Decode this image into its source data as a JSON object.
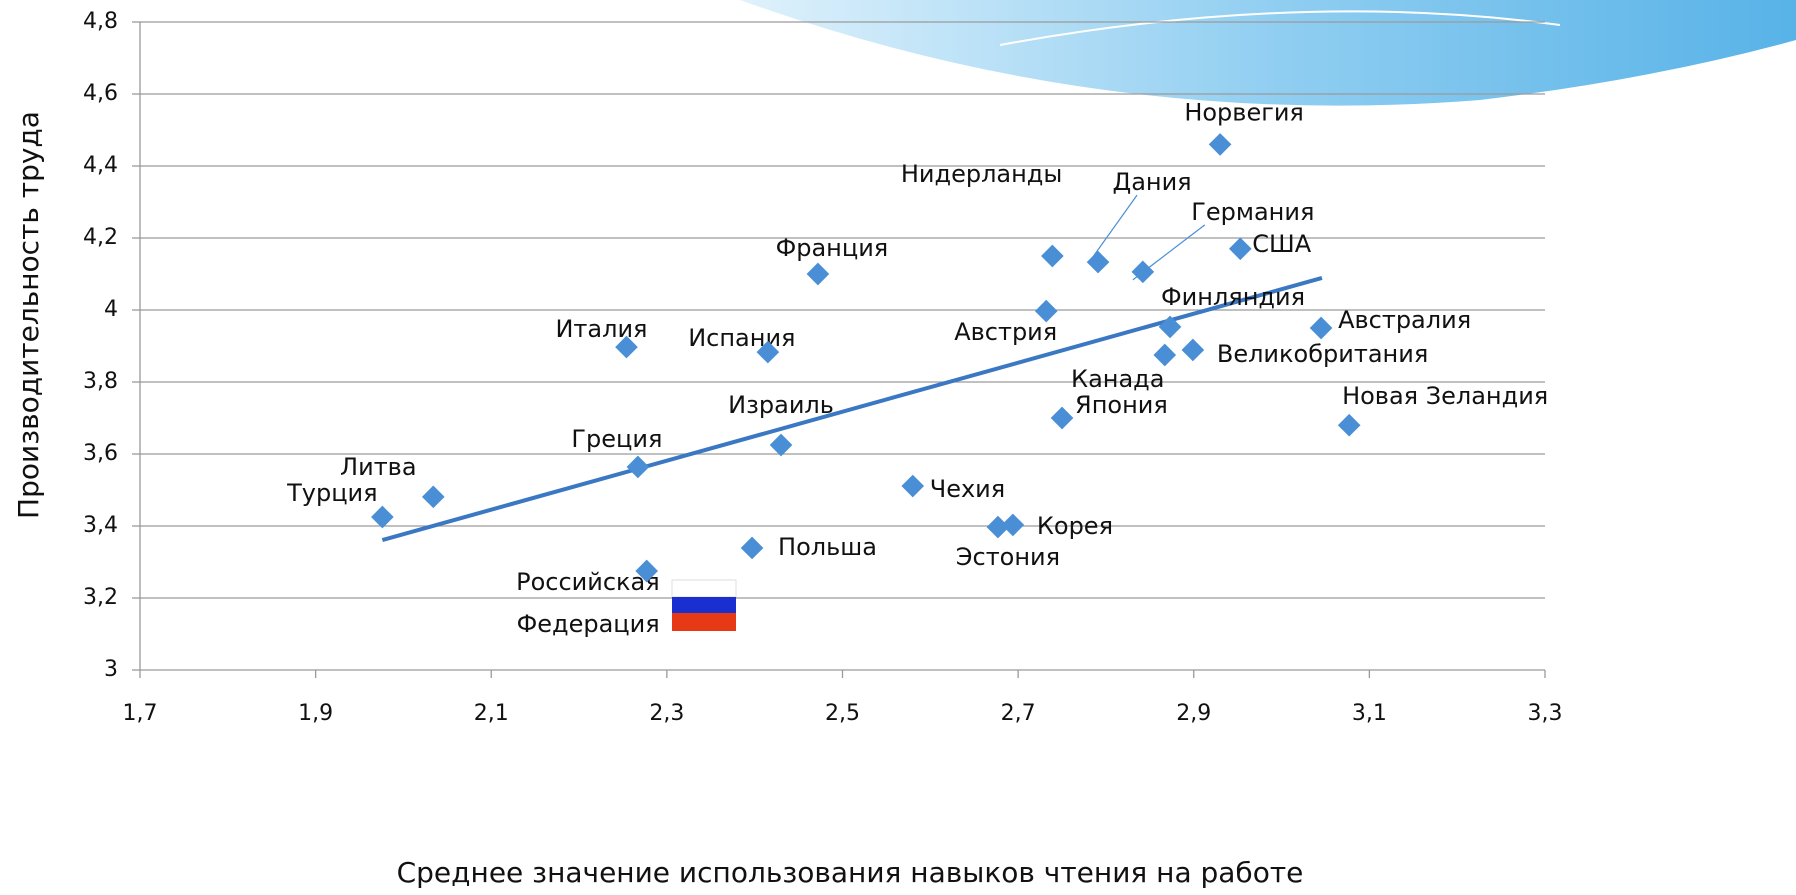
{
  "chart_data": {
    "type": "scatter",
    "xlabel": "Среднее значение использования навыков чтения на работе",
    "ylabel": "Производительность труда",
    "xlim": [
      1.7,
      3.3
    ],
    "xticks": [
      {
        "value": 1.7,
        "label": "1,7"
      },
      {
        "value": 1.9,
        "label": "1,9"
      },
      {
        "value": 2.1,
        "label": "2,1"
      },
      {
        "value": 2.3,
        "label": "2,3"
      },
      {
        "value": 2.5,
        "label": "2,5"
      },
      {
        "value": 2.7,
        "label": "2,7"
      },
      {
        "value": 2.9,
        "label": "2,9"
      },
      {
        "value": 3.1,
        "label": "3,1"
      },
      {
        "value": 3.3,
        "label": "3,3"
      }
    ],
    "ylim": [
      3,
      4.8
    ],
    "yticks": [
      3,
      {
        "value": 3.2,
        "label": "3,2"
      },
      {
        "value": 3.4,
        "label": "3,4"
      },
      {
        "value": 3.6,
        "label": "3,6"
      },
      {
        "value": 3.8,
        "label": "3,8"
      },
      4,
      {
        "value": 4.2,
        "label": "4,2"
      },
      {
        "value": 4.4,
        "label": "4,4"
      },
      {
        "value": 4.6,
        "label": "4,6"
      },
      {
        "value": 4.8,
        "label": "4,8"
      }
    ],
    "grid": true,
    "series": [
      {
        "color": "#4a8fd6",
        "labels": [
          "Норвегия",
          "Нидерланды",
          "Дания",
          "Германия",
          "США",
          "Франция",
          "Австрия",
          "Финляндия",
          "Австралия",
          "Италия",
          "Испания",
          "Канада",
          "Великобритания",
          "Япония",
          "Новая Зеландия",
          "Израиль",
          "Греция",
          "Чехия",
          "Литва",
          "Турция",
          "Эстония",
          "Корея",
          "Польша",
          [
            "Российская",
            "Федерация"
          ]
        ],
        "x": [
          2.93,
          2.739,
          2.791,
          2.842,
          2.953,
          2.472,
          2.732,
          2.873,
          3.045,
          2.254,
          2.415,
          2.867,
          2.899,
          2.75,
          3.077,
          2.43,
          2.267,
          2.58,
          2.034,
          1.976,
          2.677,
          2.694,
          2.397,
          2.277
        ],
        "values": [
          4.46,
          4.15,
          4.133,
          4.106,
          4.17,
          4.1,
          3.997,
          3.953,
          3.95,
          3.897,
          3.883,
          3.875,
          3.889,
          3.7,
          3.68,
          3.625,
          3.564,
          3.511,
          3.481,
          3.425,
          3.397,
          3.403,
          3.339,
          3.275
        ]
      }
    ],
    "trendline": {
      "color": "#3b78c3",
      "x": [
        1.976,
        3.046
      ],
      "values": [
        3.361,
        4.089
      ]
    }
  }
}
